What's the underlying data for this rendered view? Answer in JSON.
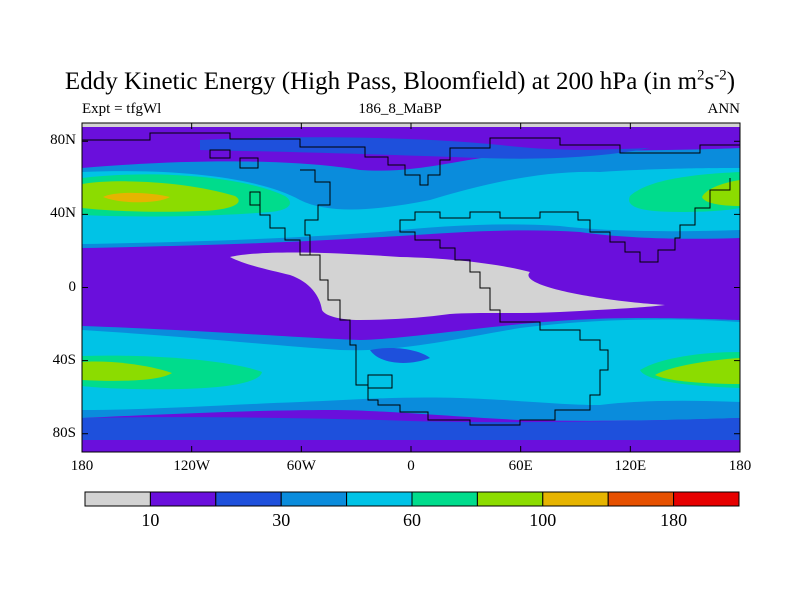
{
  "title": {
    "main": "Eddy Kinetic Energy (High Pass, Bloomfield) at 200 hPa (in m",
    "sup1": "2",
    "mid": "s",
    "sup2": "-2",
    "end": ")"
  },
  "subtitle_left": "Expt = tfgWl",
  "subtitle_center": "186_8_MaBP",
  "subtitle_right": "ANN",
  "colors": {
    "levels": [
      "#d3d3d3",
      "#6a0fdc",
      "#1e50dc",
      "#0a8cdc",
      "#00c3e6",
      "#00dc8c",
      "#8cdc00",
      "#e6b400",
      "#e65000",
      "#e60000"
    ]
  },
  "chart_data": {
    "type": "heatmap",
    "projection": "cylindrical-equidistant",
    "xlim": [
      -180,
      180
    ],
    "ylim": [
      -90,
      90
    ],
    "x_ticks": [
      -180,
      -120,
      -60,
      0,
      60,
      120,
      180
    ],
    "x_tick_labels": [
      "180",
      "120W",
      "60W",
      "0",
      "60E",
      "120E",
      "180"
    ],
    "y_ticks": [
      80,
      40,
      0,
      -40,
      -80
    ],
    "y_tick_labels": [
      "80N",
      "40N",
      "0",
      "40S",
      "80S"
    ],
    "colorbar": {
      "levels": [
        10,
        20,
        30,
        45,
        60,
        80,
        100,
        140,
        180
      ],
      "labels": [
        "10",
        "30",
        "60",
        "100",
        "180"
      ],
      "label_positions": [
        0,
        2,
        4,
        6,
        8
      ]
    }
  }
}
